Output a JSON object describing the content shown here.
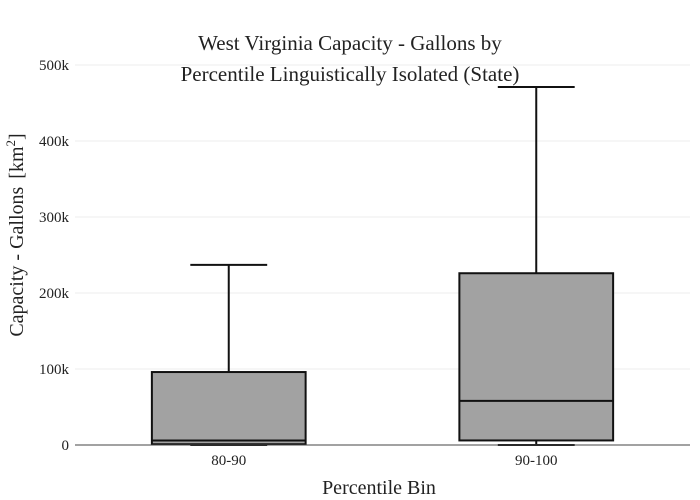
{
  "chart_data": {
    "type": "box",
    "title_lines": [
      "West Virginia Capacity - Gallons by",
      "Percentile Linguistically Isolated (State)"
    ],
    "xlabel": "Percentile Bin",
    "ylabel": "Capacity - Gallons",
    "ylabel_unit": "[km",
    "ylabel_unit_sup": "2",
    "ylabel_unit_close": "]",
    "ylim": [
      0,
      500000
    ],
    "yticks": [
      {
        "value": 0,
        "label": "0"
      },
      {
        "value": 100000,
        "label": "100k"
      },
      {
        "value": 200000,
        "label": "200k"
      },
      {
        "value": 300000,
        "label": "300k"
      },
      {
        "value": 400000,
        "label": "400k"
      },
      {
        "value": 500000,
        "label": "500k"
      }
    ],
    "categories": [
      "80-90",
      "90-100"
    ],
    "boxes": [
      {
        "category": "80-90",
        "min": 0,
        "q1": 1000,
        "median": 6000,
        "q3": 96000,
        "max": 237000
      },
      {
        "category": "90-100",
        "min": 0,
        "q1": 6000,
        "median": 58000,
        "q3": 226000,
        "max": 471000
      }
    ],
    "box_color": "#a2a2a2",
    "line_color": "#111111",
    "grid": true
  }
}
